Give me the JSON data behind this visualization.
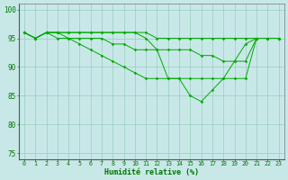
{
  "x": [
    0,
    1,
    2,
    3,
    4,
    5,
    6,
    7,
    8,
    9,
    10,
    11,
    12,
    13,
    14,
    15,
    16,
    17,
    18,
    19,
    20,
    21,
    22,
    23
  ],
  "line1": [
    96,
    95,
    96,
    96,
    96,
    96,
    96,
    96,
    96,
    96,
    96,
    96,
    95,
    95,
    95,
    95,
    95,
    95,
    95,
    95,
    95,
    95,
    95,
    95
  ],
  "line2": [
    96,
    95,
    96,
    96,
    96,
    96,
    96,
    96,
    96,
    96,
    96,
    95,
    93,
    88,
    88,
    85,
    84,
    86,
    88,
    91,
    94,
    95,
    95,
    95
  ],
  "line3": [
    96,
    95,
    96,
    96,
    95,
    95,
    95,
    95,
    94,
    94,
    93,
    93,
    93,
    93,
    93,
    93,
    92,
    92,
    91,
    91,
    91,
    95,
    95,
    95
  ],
  "line4": [
    96,
    95,
    96,
    95,
    95,
    94,
    93,
    92,
    91,
    90,
    89,
    88,
    88,
    88,
    88,
    88,
    88,
    88,
    88,
    88,
    88,
    95,
    95,
    95
  ],
  "line_color": "#00aa00",
  "bg_color": "#c8e8e8",
  "grid_color": "#99ccbb",
  "ylim": [
    74,
    101
  ],
  "yticks": [
    75,
    80,
    85,
    90,
    95,
    100
  ],
  "xlabel": "Humidité relative (%)",
  "xlabel_color": "#007700",
  "tick_color": "#007700",
  "marker": "D",
  "marker_size": 1.8,
  "linewidth": 0.7
}
